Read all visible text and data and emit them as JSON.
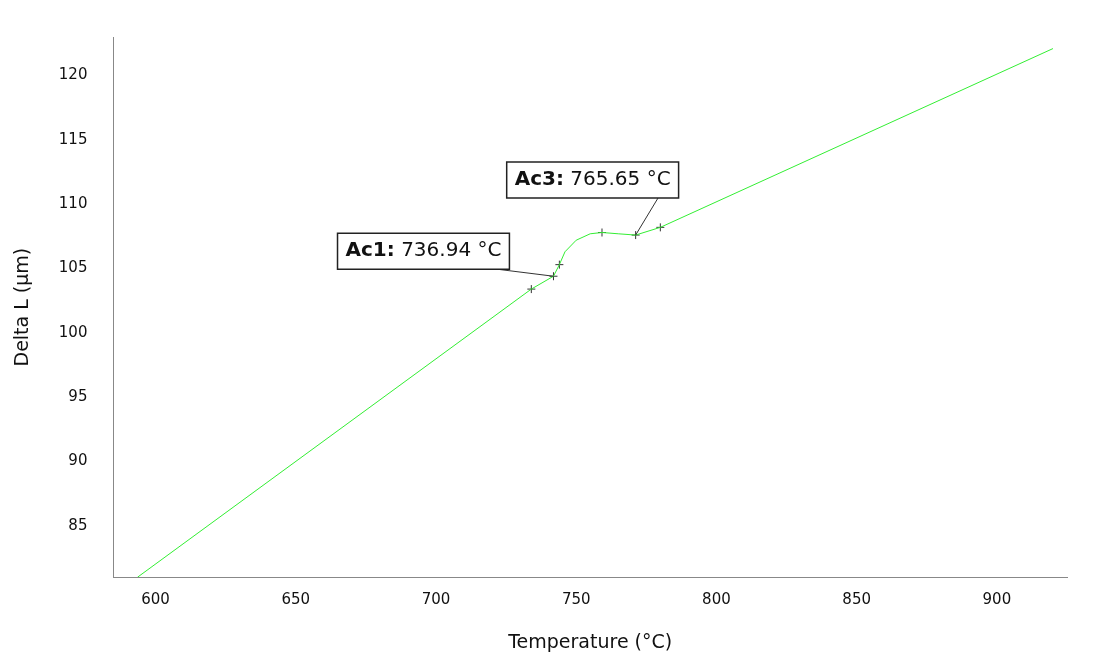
{
  "chart_data": {
    "type": "line",
    "xlabel": "Temperature (°C)",
    "ylabel": "Delta L (µm)",
    "xlim": [
      585,
      925
    ],
    "ylim": [
      81,
      123
    ],
    "xticks": [
      600,
      650,
      700,
      750,
      800,
      850,
      900
    ],
    "yticks": [
      85,
      90,
      95,
      100,
      105,
      110,
      115,
      120
    ],
    "grid": false,
    "legend": false,
    "series": [
      {
        "color": "#33ee33",
        "marker": "none",
        "x": [
          593.6,
          734,
          741.9,
          744,
          746,
          750,
          755,
          759.2,
          765,
          771.2,
          780,
          920
        ],
        "values": [
          81.0,
          103.4,
          104.4,
          105.3,
          106.3,
          107.2,
          107.7,
          107.8,
          107.7,
          107.6,
          108.2,
          122.1
        ]
      },
      {
        "type": "scatter",
        "color": "#333333",
        "marker": "cross",
        "x": [
          734,
          741.9,
          744,
          759.2,
          771.2,
          780
        ],
        "values": [
          103.4,
          104.4,
          105.3,
          107.8,
          107.6,
          108.2
        ]
      }
    ],
    "annotations": [
      {
        "text": "Ac1: 736.94 °C",
        "x": 741.9,
        "y": 104.4
      },
      {
        "text": "Ac3: 765.65 °C",
        "x": 771.2,
        "y": 107.6
      }
    ]
  }
}
